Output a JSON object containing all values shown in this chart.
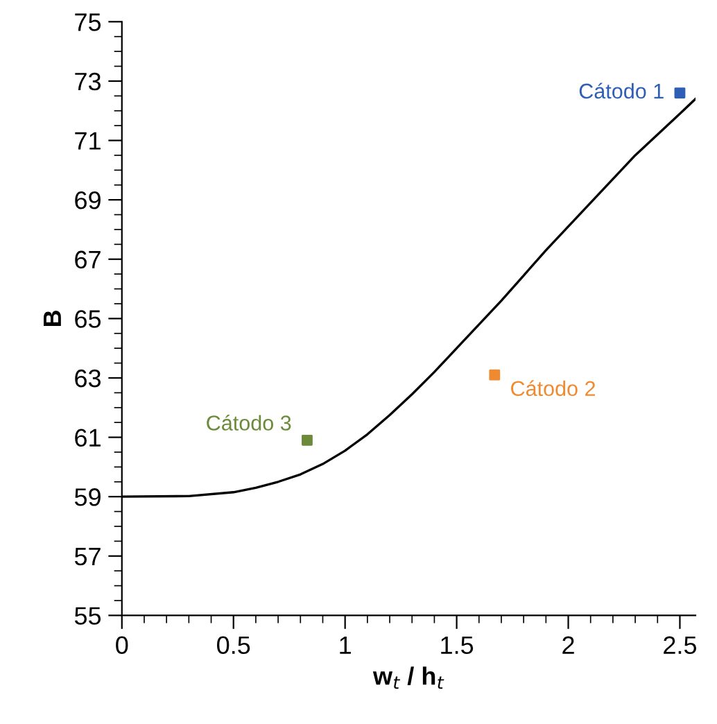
{
  "chart_data": {
    "type": "scatter",
    "xlabel": "w$_{t}$ / h$_{t}$",
    "ylabel": "B",
    "xlim": [
      0,
      2.57
    ],
    "xticks": [
      0,
      0.5,
      1,
      1.5,
      2,
      2.5
    ],
    "ylim": [
      55,
      75
    ],
    "yticks": [
      55,
      57,
      59,
      61,
      63,
      65,
      67,
      69,
      71,
      73,
      75
    ],
    "grid": false,
    "legend": false,
    "series": [
      {
        "type": "line",
        "color": "#000000",
        "marker": "none",
        "line_style": "solid",
        "x": [
          0,
          0.3,
          0.5,
          0.6,
          0.7,
          0.8,
          0.9,
          1.0,
          1.1,
          1.2,
          1.3,
          1.4,
          1.5,
          1.6,
          1.7,
          1.8,
          1.9,
          2.0,
          2.1,
          2.2,
          2.3,
          2.4,
          2.5,
          2.57
        ],
        "values": [
          59,
          59.02,
          59.15,
          59.3,
          59.5,
          59.75,
          60.1,
          60.55,
          61.1,
          61.75,
          62.45,
          63.2,
          64.0,
          64.8,
          65.6,
          66.45,
          67.3,
          68.1,
          68.9,
          69.7,
          70.5,
          71.2,
          71.9,
          72.4
        ]
      },
      {
        "name": "Cátodo 1",
        "color": "#2f5eb5",
        "marker": "square",
        "x": [
          2.5
        ],
        "values": [
          72.6
        ]
      },
      {
        "name": "Cátodo 2",
        "color": "#f08a30",
        "marker": "square",
        "x": [
          1.67
        ],
        "values": [
          63.1
        ]
      },
      {
        "name": "Cátodo 3",
        "color": "#6b8a3a",
        "marker": "square",
        "x": [
          0.83
        ],
        "values": [
          60.9
        ]
      }
    ]
  }
}
